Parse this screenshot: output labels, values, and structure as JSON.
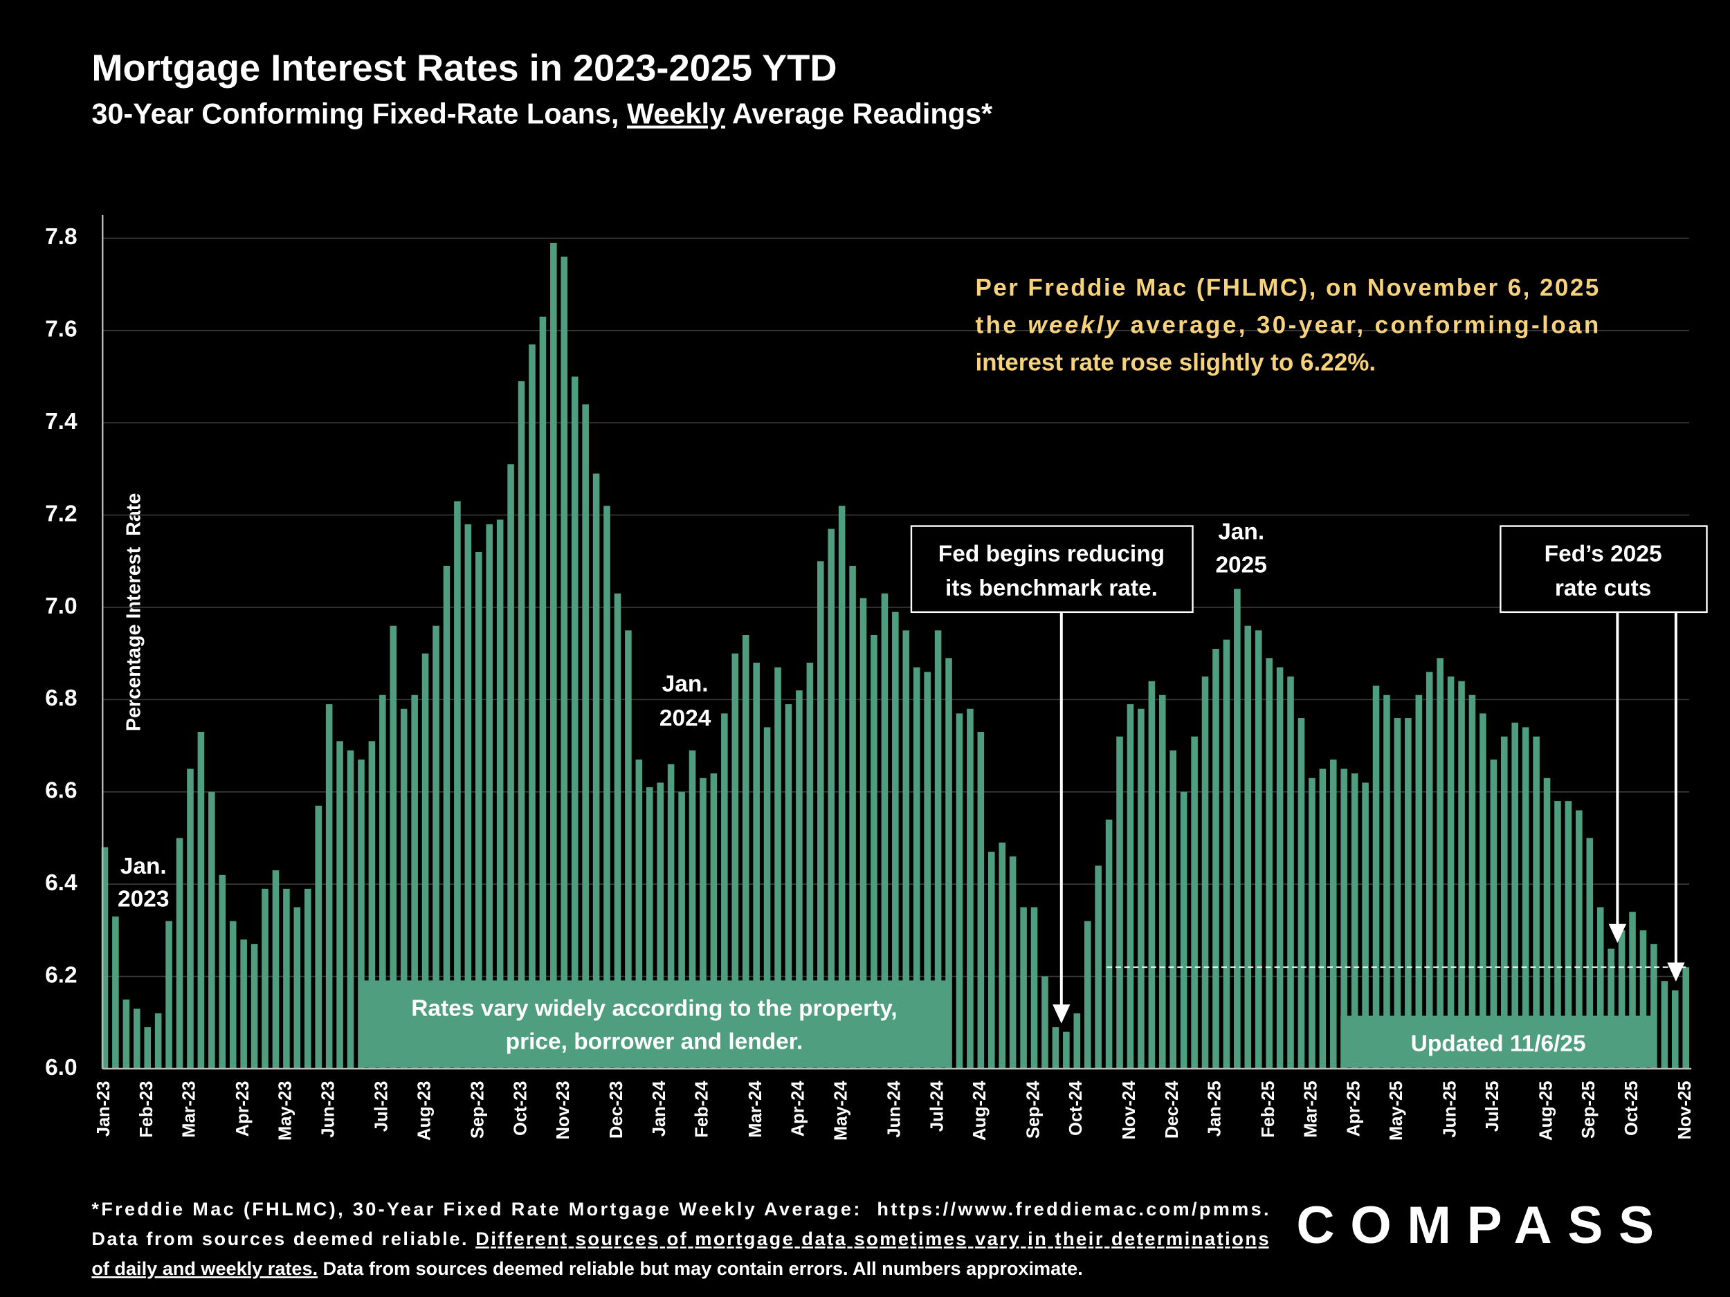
{
  "chart_data": {
    "type": "bar",
    "title": "Mortgage Interest Rates in 2023-2025 YTD",
    "subtitle": [
      {
        "text": "30-Year Conforming Fixed-Rate Loans, "
      },
      {
        "text": "Weekly",
        "underline": true
      },
      {
        "text": " Average Readings*"
      }
    ],
    "y_label": "Percentage Interest  Rate",
    "color": "#4f9e7f",
    "grid": true,
    "ylim": [
      6.0,
      7.85
    ],
    "yticks": [
      {
        "value": 6.0,
        "label": "6.0"
      },
      6.2,
      6.4,
      6.6,
      6.8,
      {
        "value": 7.0,
        "label": "7.0"
      },
      7.2,
      7.4,
      7.6,
      7.8
    ],
    "categories": [
      "Jan-23",
      null,
      null,
      null,
      "Feb-23",
      null,
      null,
      null,
      "Mar-23",
      null,
      null,
      null,
      null,
      "Apr-23",
      null,
      null,
      null,
      "May-23",
      null,
      null,
      null,
      "Jun-23",
      null,
      null,
      null,
      null,
      "Jul-23",
      null,
      null,
      null,
      "Aug-23",
      null,
      null,
      null,
      null,
      "Sep-23",
      null,
      null,
      null,
      "Oct-23",
      null,
      null,
      null,
      "Nov-23",
      null,
      null,
      null,
      null,
      "Dec-23",
      null,
      null,
      null,
      "Jan-24",
      null,
      null,
      null,
      "Feb-24",
      null,
      null,
      null,
      null,
      "Mar-24",
      null,
      null,
      null,
      "Apr-24",
      null,
      null,
      null,
      "May-24",
      null,
      null,
      null,
      null,
      "Jun-24",
      null,
      null,
      null,
      "Jul-24",
      null,
      null,
      null,
      "Aug-24",
      null,
      null,
      null,
      null,
      "Sep-24",
      null,
      null,
      null,
      "Oct-24",
      null,
      null,
      null,
      null,
      "Nov-24",
      null,
      null,
      null,
      "Dec-24",
      null,
      null,
      null,
      "Jan-25",
      null,
      null,
      null,
      null,
      "Feb-25",
      null,
      null,
      null,
      "Mar-25",
      null,
      null,
      null,
      "Apr-25",
      null,
      null,
      null,
      "May-25",
      null,
      null,
      null,
      null,
      "Jun-25",
      null,
      null,
      null,
      "Jul-25",
      null,
      null,
      null,
      null,
      "Aug-25",
      null,
      null,
      null,
      "Sep-25",
      null,
      null,
      null,
      "Oct-25",
      null,
      null,
      null,
      null,
      "Nov-25"
    ],
    "values": [
      6.48,
      6.33,
      6.15,
      6.13,
      6.09,
      6.12,
      6.32,
      6.5,
      6.65,
      6.73,
      6.6,
      6.42,
      6.32,
      6.28,
      6.27,
      6.39,
      6.43,
      6.39,
      6.35,
      6.39,
      6.57,
      6.79,
      6.71,
      6.69,
      6.67,
      6.71,
      6.81,
      6.96,
      6.78,
      6.81,
      6.9,
      6.96,
      7.09,
      7.23,
      7.18,
      7.12,
      7.18,
      7.19,
      7.31,
      7.49,
      7.57,
      7.63,
      7.79,
      7.76,
      7.5,
      7.44,
      7.29,
      7.22,
      7.03,
      6.95,
      6.67,
      6.61,
      6.62,
      6.66,
      6.6,
      6.69,
      6.63,
      6.64,
      6.77,
      6.9,
      6.94,
      6.88,
      6.74,
      6.87,
      6.79,
      6.82,
      6.88,
      7.1,
      7.17,
      7.22,
      7.09,
      7.02,
      6.94,
      7.03,
      6.99,
      6.95,
      6.87,
      6.86,
      6.95,
      6.89,
      6.77,
      6.78,
      6.73,
      6.47,
      6.49,
      6.46,
      6.35,
      6.35,
      6.2,
      6.09,
      6.08,
      6.12,
      6.32,
      6.44,
      6.54,
      6.72,
      6.79,
      6.78,
      6.84,
      6.81,
      6.69,
      6.6,
      6.72,
      6.85,
      6.91,
      6.93,
      7.04,
      6.96,
      6.95,
      6.89,
      6.87,
      6.85,
      6.76,
      6.63,
      6.65,
      6.67,
      6.65,
      6.64,
      6.62,
      6.83,
      6.81,
      6.76,
      6.76,
      6.81,
      6.86,
      6.89,
      6.85,
      6.84,
      6.81,
      6.77,
      6.67,
      6.72,
      6.75,
      6.74,
      6.72,
      6.63,
      6.58,
      6.58,
      6.56,
      6.5,
      6.35,
      6.26,
      6.3,
      6.34,
      6.3,
      6.27,
      6.19,
      6.17,
      6.22
    ],
    "note": [
      [
        {
          "text": "Per Freddie Mac (FHLMC), on November 6, 2025"
        }
      ],
      [
        {
          "text": "the "
        },
        {
          "text": "weekly",
          "italic": true
        },
        {
          "text": " average, 30-year, conforming-loan"
        }
      ],
      [
        {
          "text": "interest rate rose slightly to 6.22%."
        }
      ]
    ],
    "year_labels": [
      [
        "Jan.",
        "2023"
      ],
      [
        "Jan.",
        "2024"
      ],
      [
        "Jan.",
        "2025"
      ]
    ],
    "fed_begins": [
      "Fed begins reducing",
      "its benchmark rate."
    ],
    "fed_cuts": [
      "Fed’s 2025",
      "rate cuts"
    ],
    "rates_vary": [
      "Rates vary widely according to the property,",
      "price, borrower and lender."
    ],
    "updated": "Updated 11/6/25",
    "footnote": [
      [
        {
          "text": "*Freddie Mac (FHLMC), 30-Year Fixed Rate Mortgage Weekly Average:  https://www.freddiemac.com/pmms."
        }
      ],
      [
        {
          "text": "Data from sources deemed reliable. "
        },
        {
          "text": "Different sources of mortgage data sometimes vary in their determinations",
          "underline": true
        }
      ],
      [
        {
          "text": "of daily and weekly rates.",
          "underline": true
        },
        {
          "text": " Data from sources deemed reliable but may contain errors. All numbers approximate."
        }
      ]
    ],
    "logo": "COMPASS"
  }
}
